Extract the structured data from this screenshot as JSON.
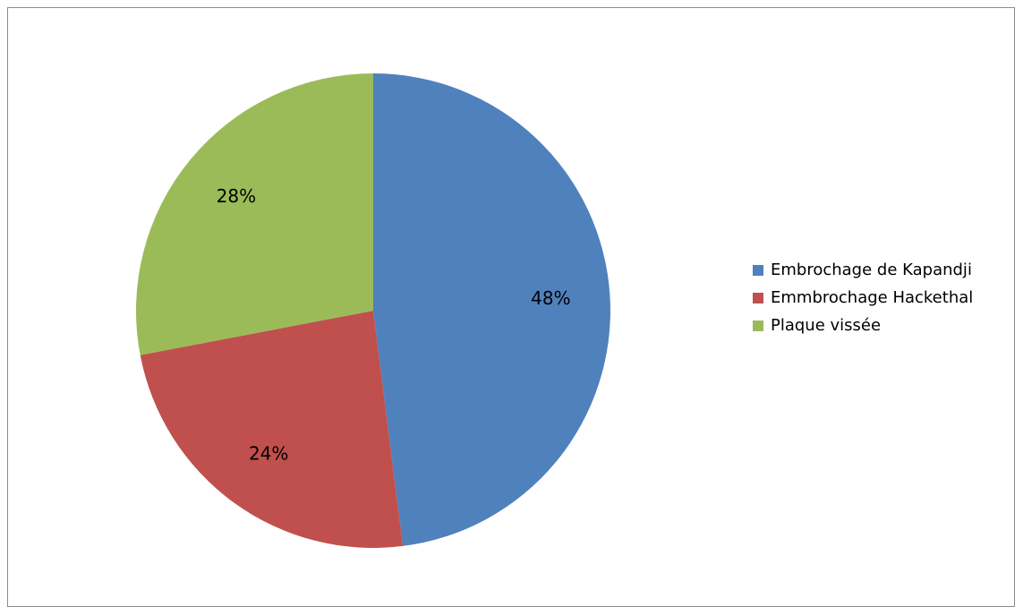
{
  "chart_data": {
    "type": "pie",
    "categories": [
      "Embrochage de Kapandji",
      "Emmbrochage Hackethal",
      "Plaque vissée"
    ],
    "values": [
      48,
      24,
      28
    ],
    "labels": [
      "48%",
      "24%",
      "28%"
    ],
    "colors": [
      "#4F81BD",
      "#C0504D",
      "#9BBB59"
    ],
    "legend_position": "right",
    "start": "top",
    "direction": "clockwise"
  }
}
